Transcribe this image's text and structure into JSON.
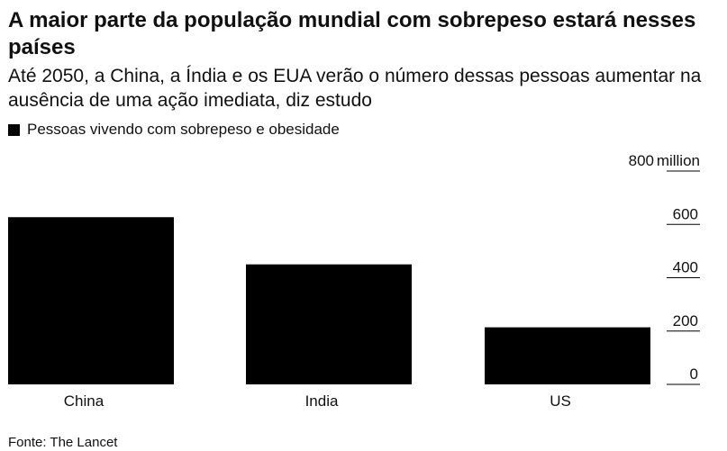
{
  "title": "A maior parte da população mundial com sobrepeso estará nesses países",
  "subtitle": "Até 2050, a China, a Índia e os EUA verão o número dessas pessoas aumentar na ausência de uma ação imediata, diz estudo",
  "legend_label": "Pessoas vivendo com sobrepeso e obesidade",
  "source": "Fonte: The Lancet",
  "colors": {
    "bar": "#000000",
    "gridline": "#000000",
    "text": "#111111"
  },
  "chart_data": {
    "type": "bar",
    "categories": [
      "China",
      "India",
      "US"
    ],
    "values": [
      627,
      450,
      214
    ],
    "ylim": [
      0,
      800
    ],
    "y_ticks": [
      {
        "value": 0,
        "label": "0"
      },
      {
        "value": 200,
        "label": "200"
      },
      {
        "value": 400,
        "label": "400"
      },
      {
        "value": 600,
        "label": "600"
      },
      {
        "value": 800,
        "label": "800"
      }
    ],
    "y_unit": "million",
    "y_axis_position": "right",
    "grid": true
  }
}
